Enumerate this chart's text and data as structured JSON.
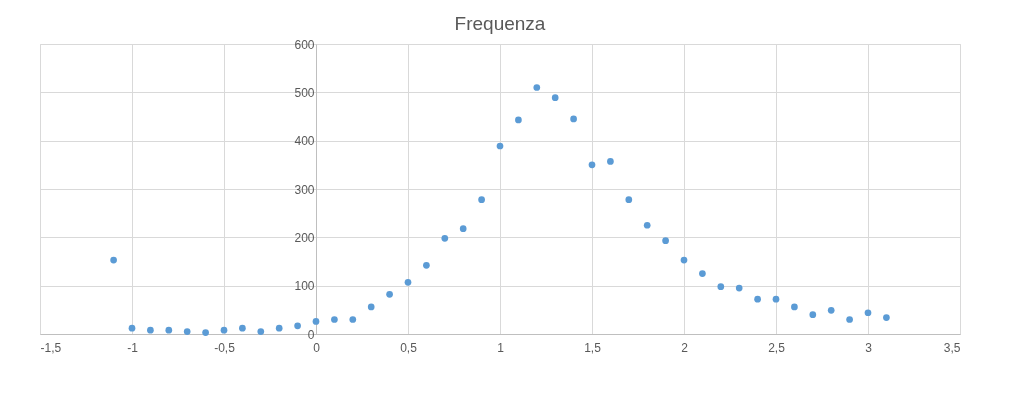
{
  "chart_data": {
    "type": "scatter",
    "title": "Frequenza",
    "x": [
      -1.1,
      -1.0,
      -0.9,
      -0.8,
      -0.7,
      -0.6,
      -0.5,
      -0.4,
      -0.3,
      -0.2,
      -0.1,
      0,
      0.1,
      0.2,
      0.3,
      0.4,
      0.5,
      0.6,
      0.7,
      0.8,
      0.9,
      1.0,
      1.1,
      1.2,
      1.3,
      1.4,
      1.5,
      1.6,
      1.7,
      1.8,
      1.9,
      2.0,
      2.1,
      2.2,
      2.3,
      2.4,
      2.5,
      2.6,
      2.7,
      2.8,
      2.9,
      3.0,
      3.1
    ],
    "series": [
      {
        "color": "#5b9bd5",
        "values": [
          153,
          12,
          8,
          8,
          5,
          3,
          8,
          12,
          5,
          12,
          17,
          26,
          30,
          30,
          56,
          82,
          107,
          142,
          198,
          218,
          278,
          389,
          443,
          510,
          489,
          445,
          350,
          357,
          278,
          225,
          193,
          153,
          125,
          98,
          95,
          72,
          72,
          56,
          40,
          49,
          30,
          44,
          34
        ]
      }
    ],
    "xlim": [
      -1.5,
      3.5
    ],
    "xticks": [
      {
        "value": -1.5,
        "label": "-1,5"
      },
      -1,
      {
        "value": -0.5,
        "label": "-0,5"
      },
      0,
      {
        "value": 0.5,
        "label": "0,5"
      },
      1,
      {
        "value": 1.5,
        "label": "1,5"
      },
      2,
      {
        "value": 2.5,
        "label": "2,5"
      },
      3,
      {
        "value": 3.5,
        "label": "3,5"
      }
    ],
    "ylim": [
      0,
      600
    ],
    "yticks": [
      0,
      100,
      200,
      300,
      400,
      500,
      600
    ],
    "grid": true,
    "marker": "circle"
  }
}
